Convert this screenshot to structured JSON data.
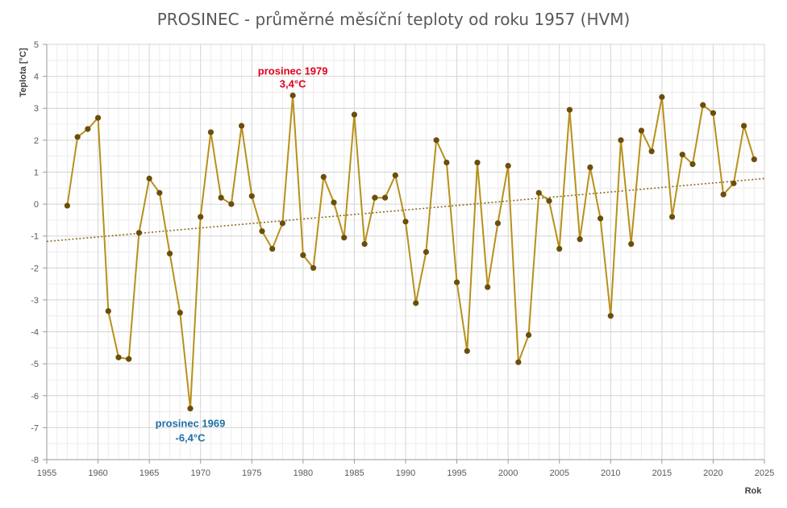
{
  "chart_data": {
    "type": "line",
    "title": "PROSINEC - průměrné měsíční teploty od roku 1957 (HVM)",
    "xlabel": "Rok",
    "ylabel": "Teplota [°C]",
    "xlim": [
      1955,
      2025
    ],
    "ylim": [
      -8,
      5
    ],
    "x_ticks": [
      "1955",
      "1960",
      "1965",
      "1970",
      "1975",
      "1980",
      "1985",
      "1990",
      "1995",
      "2000",
      "2005",
      "2010",
      "2015",
      "2020",
      "2025"
    ],
    "y_ticks": [
      "5",
      "4",
      "3",
      "2",
      "1",
      "0",
      "-1",
      "-2",
      "-3",
      "-4",
      "-5",
      "-6",
      "-7",
      "-8"
    ],
    "grid": true,
    "legend": "none",
    "series": [
      {
        "color": "#b8901a",
        "marker_color": "#6b4e0c",
        "x": [
          1957,
          1958,
          1959,
          1960,
          1961,
          1962,
          1963,
          1964,
          1965,
          1966,
          1967,
          1968,
          1969,
          1970,
          1971,
          1972,
          1973,
          1974,
          1975,
          1976,
          1977,
          1978,
          1979,
          1980,
          1981,
          1982,
          1983,
          1984,
          1985,
          1986,
          1987,
          1988,
          1989,
          1990,
          1991,
          1992,
          1993,
          1994,
          1995,
          1996,
          1997,
          1998,
          1999,
          2000,
          2001,
          2002,
          2003,
          2004,
          2005,
          2006,
          2007,
          2008,
          2009,
          2010,
          2011,
          2012,
          2013,
          2014,
          2015,
          2016,
          2017,
          2018,
          2019,
          2020,
          2021,
          2022,
          2023,
          2024
        ],
        "values": [
          -0.05,
          2.1,
          2.35,
          2.7,
          -3.35,
          -4.8,
          -4.85,
          -0.9,
          0.8,
          0.35,
          -1.55,
          -3.4,
          -6.4,
          -0.4,
          2.25,
          0.2,
          0.0,
          2.45,
          0.25,
          -0.85,
          -1.4,
          -0.6,
          3.4,
          -1.6,
          -2.0,
          0.85,
          0.05,
          -1.05,
          2.8,
          -1.25,
          0.2,
          0.2,
          0.9,
          -0.55,
          -3.1,
          -1.5,
          2.0,
          1.3,
          -2.45,
          -4.6,
          1.3,
          -2.6,
          -0.6,
          1.2,
          -4.95,
          -4.1,
          0.35,
          0.1,
          -1.4,
          2.95,
          -1.1,
          1.15,
          -0.45,
          -3.5,
          2.0,
          -1.25,
          2.3,
          1.65,
          3.35,
          -0.4,
          1.55,
          1.25,
          3.1,
          2.85,
          0.3,
          0.65,
          2.45,
          1.4
        ]
      }
    ],
    "trendline": {
      "style": "dotted",
      "color": "#8a6d1a",
      "start": [
        1955,
        -1.17
      ],
      "end": [
        2025,
        0.8
      ]
    },
    "annotations": [
      {
        "line1": "prosinec 1979",
        "line2": "3,4°C",
        "x": 1979,
        "y": 3.4,
        "color": "#e0001b"
      },
      {
        "line1": "prosinec 1969",
        "line2": "-6,4°C",
        "x": 1969,
        "y": -6.4,
        "color": "#1f6fa8"
      }
    ]
  }
}
